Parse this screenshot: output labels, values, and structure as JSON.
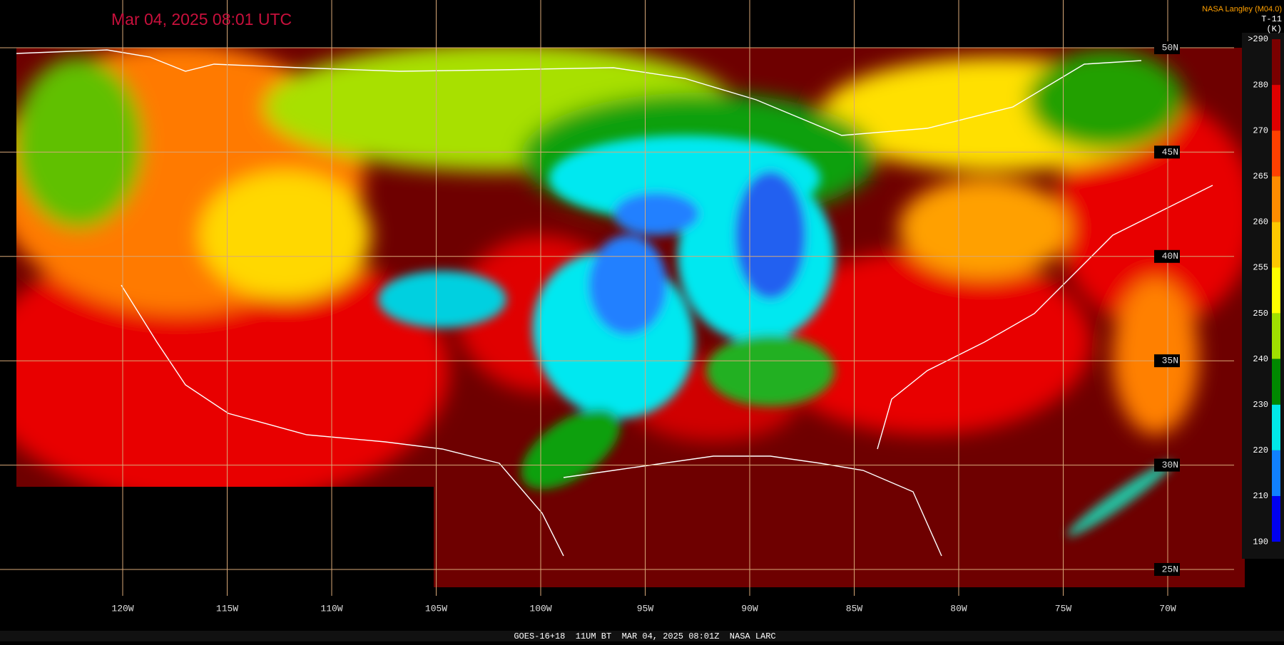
{
  "header": {
    "timestamp": "Mar 04, 2025 08:01 UTC",
    "source": "NASA Langley (M04.0)"
  },
  "colorbar": {
    "variable": "T-11",
    "unit": "(K)",
    "labels": [
      ">290",
      "280",
      "270",
      "265",
      "260",
      "255",
      "250",
      "240",
      "230",
      "220",
      "210",
      "190"
    ]
  },
  "grid": {
    "longitudes": [
      "120W",
      "115W",
      "110W",
      "105W",
      "100W",
      "95W",
      "90W",
      "85W",
      "80W",
      "75W",
      "70W"
    ],
    "latitudes": [
      "50N",
      "45N",
      "40N",
      "35N",
      "30N",
      "25N"
    ]
  },
  "footer": "GOES-16+18  11UM BT  MAR 04, 2025 08:01Z  NASA LARC"
}
